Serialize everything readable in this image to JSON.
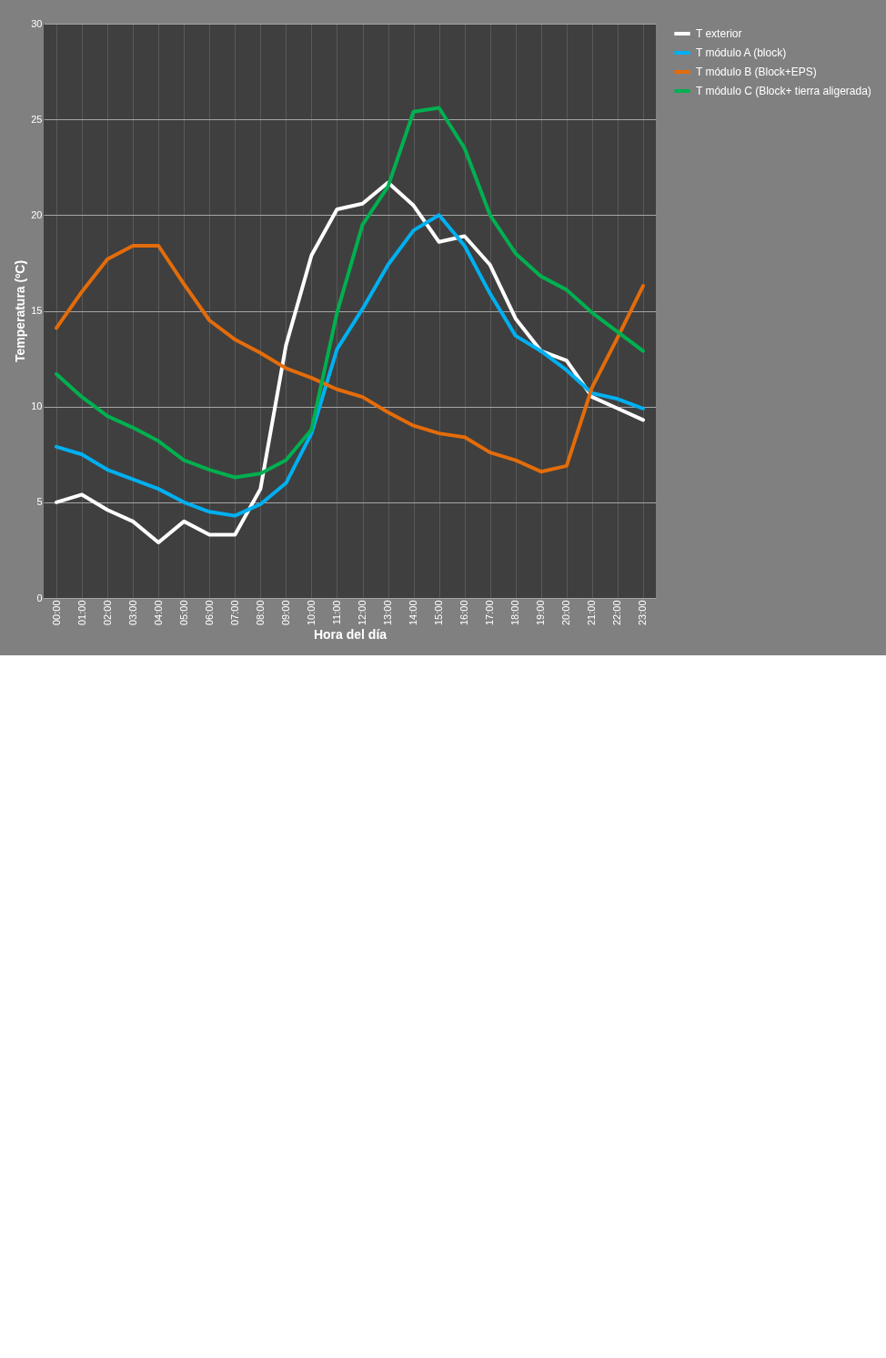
{
  "chart_data": {
    "type": "line",
    "xlabel": "Hora del día",
    "ylabel": "Temperatura (ºC)",
    "categories": [
      "00:00",
      "01:00",
      "02:00",
      "03:00",
      "04:00",
      "05:00",
      "06:00",
      "07:00",
      "08:00",
      "09:00",
      "10:00",
      "11:00",
      "12:00",
      "13:00",
      "14:00",
      "15:00",
      "16:00",
      "17:00",
      "18:00",
      "19:00",
      "20:00",
      "21:00",
      "22:00",
      "23:00"
    ],
    "series": [
      {
        "name": "T exterior",
        "color": "#ffffff",
        "values": [
          5.0,
          5.4,
          4.6,
          4.0,
          2.9,
          4.0,
          3.3,
          3.3,
          5.7,
          13.2,
          17.9,
          20.3,
          20.6,
          21.7,
          20.5,
          18.6,
          18.9,
          17.4,
          14.6,
          12.9,
          12.4,
          10.5,
          9.9,
          9.3
        ]
      },
      {
        "name": "T módulo A (block)",
        "color": "#00b0f0",
        "values": [
          7.9,
          7.5,
          6.7,
          6.2,
          5.7,
          5.0,
          4.5,
          4.3,
          4.9,
          6.0,
          8.6,
          13.0,
          15.1,
          17.4,
          19.2,
          20.0,
          18.4,
          15.9,
          13.7,
          12.9,
          11.9,
          10.7,
          10.4,
          9.9
        ]
      },
      {
        "name": "T módulo B (Block+EPS)",
        "color": "#e46c0a",
        "values": [
          14.1,
          16.0,
          17.7,
          18.4,
          18.4,
          16.4,
          14.5,
          13.5,
          12.8,
          12.0,
          11.5,
          10.9,
          10.5,
          9.7,
          9.0,
          8.6,
          8.4,
          7.6,
          7.2,
          6.6,
          6.9,
          11.0,
          13.6,
          16.3
        ]
      },
      {
        "name": "T módulo C (Block+ tierra aligerada)",
        "color": "#00b050",
        "values": [
          11.7,
          10.5,
          9.5,
          8.9,
          8.2,
          7.2,
          6.7,
          6.3,
          6.5,
          7.2,
          8.8,
          14.9,
          19.5,
          21.5,
          25.4,
          25.6,
          23.5,
          20.0,
          18.0,
          16.8,
          16.1,
          14.9,
          13.9,
          12.9
        ]
      }
    ],
    "ylim": [
      0,
      30
    ],
    "yticks": [
      0,
      5,
      10,
      15,
      20,
      25,
      30
    ],
    "grid": true,
    "legend": "right",
    "line_style": "solid",
    "marker": "none"
  }
}
